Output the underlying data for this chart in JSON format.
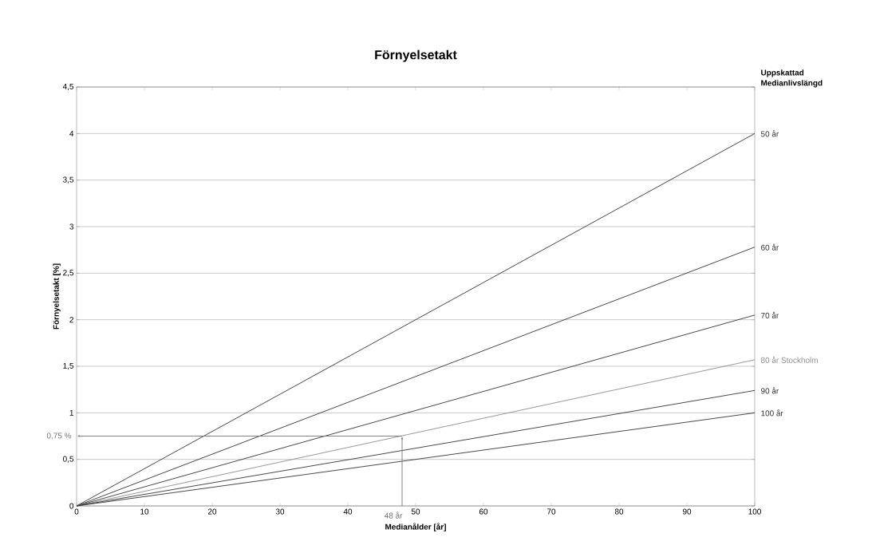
{
  "chart_data": {
    "type": "line",
    "title": "Förnyelsetakt",
    "xlabel": "Medianålder [år]",
    "ylabel": "Förnyelsetakt [%]",
    "legend_title": "Uppskattad Medianlivslängd",
    "x": [
      0,
      100
    ],
    "series": [
      {
        "name": "50 år",
        "color": "#333333",
        "values": [
          0,
          4.0
        ]
      },
      {
        "name": "60 år",
        "color": "#333333",
        "values": [
          0,
          2.78
        ]
      },
      {
        "name": "70 år",
        "color": "#333333",
        "values": [
          0,
          2.05
        ]
      },
      {
        "name": "80 år Stockholm",
        "color": "#8c8c8c",
        "values": [
          0,
          1.57
        ]
      },
      {
        "name": "90 år",
        "color": "#333333",
        "values": [
          0,
          1.24
        ]
      },
      {
        "name": "100 år",
        "color": "#333333",
        "values": [
          0,
          1.0
        ]
      }
    ],
    "xlim": [
      0,
      100
    ],
    "ylim": [
      0,
      4.5
    ],
    "xticks": [
      0,
      10,
      20,
      30,
      40,
      50,
      60,
      70,
      80,
      90,
      100
    ],
    "yticks": [
      0,
      {
        "value": 0.5,
        "label": "0,5"
      },
      1,
      {
        "value": 1.5,
        "label": "1,5"
      },
      2,
      {
        "value": 2.5,
        "label": "2,5"
      },
      3,
      {
        "value": 3.5,
        "label": "3,5"
      },
      4,
      {
        "value": 4.5,
        "label": "4,5"
      }
    ],
    "grid": "y",
    "marker": "none",
    "line_style": "solid",
    "annotations": [
      {
        "text": "0,75 %",
        "x": 48,
        "y": 0.75
      },
      {
        "text": "48 år",
        "x": 48,
        "y": 0.75
      }
    ]
  }
}
